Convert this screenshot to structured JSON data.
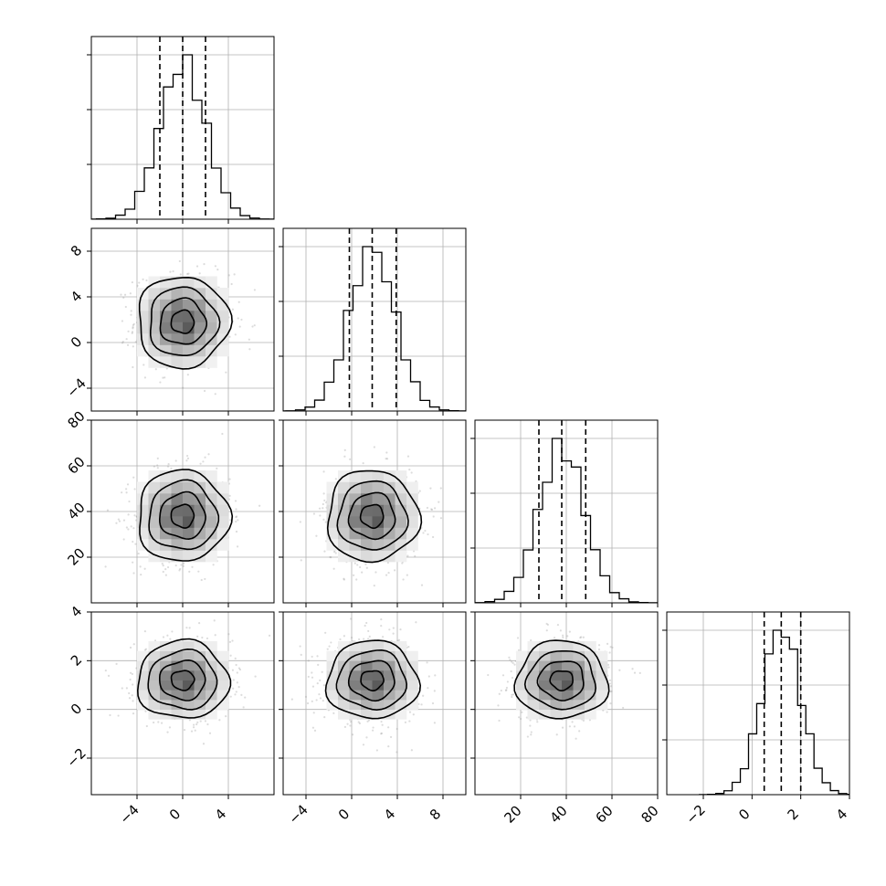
{
  "chart_data": {
    "type": "corner",
    "grid": true,
    "parameters": [
      {
        "range": [
          -8,
          8
        ],
        "ticks": [
          -4,
          0,
          4
        ],
        "tick_labels": [
          "−4",
          "0",
          "4"
        ],
        "distribution": {
          "mean": 0,
          "sd": 2
        },
        "quantiles": [
          -2,
          0,
          2
        ]
      },
      {
        "range": [
          -6,
          10
        ],
        "ticks": [
          -4,
          0,
          4,
          8
        ],
        "tick_labels": [
          "−4",
          "0",
          "4",
          "8"
        ],
        "distribution": {
          "mean": 1.8,
          "sd": 2
        },
        "quantiles": [
          -0.2,
          1.8,
          3.9
        ]
      },
      {
        "range": [
          0,
          80
        ],
        "ticks": [
          20,
          40,
          60,
          80
        ],
        "tick_labels": [
          "20",
          "40",
          "60",
          "80"
        ],
        "distribution": {
          "mean": 38,
          "sd": 10
        },
        "quantiles": [
          28,
          38,
          48.5
        ]
      },
      {
        "range": [
          -3.5,
          4
        ],
        "ticks": [
          -2,
          0,
          2,
          4
        ],
        "tick_labels": [
          "−2",
          "0",
          "2",
          "4"
        ],
        "distribution": {
          "mean": 1.2,
          "sd": 0.8
        },
        "quantiles": [
          0.5,
          1.2,
          2.0
        ]
      }
    ]
  }
}
